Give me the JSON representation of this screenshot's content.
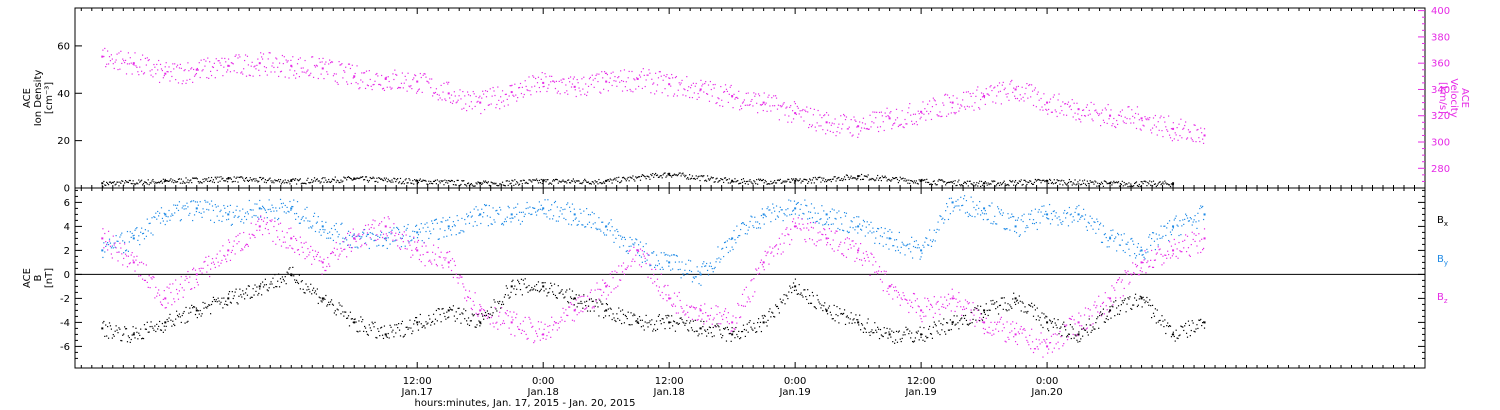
{
  "chart_data": [
    {
      "type": "scatter",
      "panel": "top",
      "ylabel_left": [
        "ACE",
        "Ion Density",
        "[cm⁻³]"
      ],
      "ylabel_right": [
        "ACE",
        "Velocity",
        "[km/s]"
      ],
      "ylim_left": [
        0,
        76
      ],
      "yticks_left": [
        0,
        20,
        40,
        60
      ],
      "ylim_right": [
        265,
        402
      ],
      "yticks_right": [
        280,
        300,
        320,
        340,
        360,
        380,
        400
      ],
      "grid": false,
      "x_unit": "hours since 0:00 Jan. 17, 2015",
      "series": [
        {
          "axis": "left",
          "color": "#000000",
          "x": [
            -18,
            -12,
            -6,
            0,
            6,
            12,
            18,
            24,
            30,
            36,
            42,
            48,
            54,
            60,
            66,
            72,
            78,
            84
          ],
          "y": [
            2,
            3,
            4,
            3,
            4,
            3,
            2,
            3,
            3,
            6,
            3,
            3,
            5,
            3,
            2,
            3,
            2,
            2
          ]
        },
        {
          "axis": "right",
          "color": "#e62ae6",
          "x": [
            -18,
            -15,
            -12,
            -9,
            -6,
            -3,
            0,
            3,
            6,
            9,
            12,
            15,
            18,
            21,
            24,
            27,
            30,
            33,
            36,
            39,
            42,
            45,
            48,
            51,
            54,
            57,
            60,
            63,
            66,
            69,
            72,
            75,
            78,
            81,
            84,
            87
          ],
          "y": [
            365,
            360,
            352,
            355,
            358,
            360,
            358,
            356,
            350,
            348,
            346,
            337,
            330,
            338,
            345,
            342,
            346,
            348,
            344,
            340,
            335,
            330,
            322,
            315,
            312,
            318,
            323,
            330,
            335,
            340,
            330,
            325,
            320,
            318,
            310,
            305
          ]
        }
      ]
    },
    {
      "type": "scatter",
      "panel": "bottom",
      "ylabel": [
        "ACE",
        "B",
        "[nT]"
      ],
      "ylim": [
        -7.8,
        7.2
      ],
      "yticks": [
        -6,
        -4,
        -2,
        0,
        2,
        4,
        6
      ],
      "zero_line": true,
      "grid": false,
      "x_unit": "hours since 0:00 Jan. 17, 2015",
      "series": [
        {
          "name": "Bx",
          "color": "#000000",
          "x": [
            -18,
            -15,
            -12,
            -9,
            -6,
            -3,
            0,
            3,
            6,
            9,
            12,
            15,
            18,
            21,
            24,
            27,
            30,
            33,
            36,
            39,
            42,
            45,
            48,
            51,
            54,
            57,
            60,
            63,
            66,
            69,
            72,
            75,
            78,
            81,
            84,
            87
          ],
          "y": [
            -4.5,
            -5,
            -4,
            -3,
            -2,
            -1,
            0,
            -2,
            -4,
            -5,
            -4,
            -3,
            -4,
            -1,
            -1,
            -2,
            -3,
            -4,
            -4,
            -4.5,
            -5,
            -4,
            -1,
            -3,
            -4,
            -5,
            -5,
            -4,
            -3,
            -2,
            -4,
            -5,
            -3,
            -2,
            -5,
            -4
          ]
        },
        {
          "name": "By",
          "color": "#1e8ae6",
          "x": [
            -18,
            -15,
            -12,
            -9,
            -6,
            -3,
            0,
            3,
            6,
            9,
            12,
            15,
            18,
            21,
            24,
            27,
            30,
            33,
            36,
            39,
            42,
            45,
            48,
            51,
            54,
            57,
            60,
            63,
            66,
            69,
            72,
            75,
            78,
            81,
            84,
            87
          ],
          "y": [
            2,
            3,
            5,
            5.5,
            5,
            5.5,
            5.5,
            4,
            3,
            3,
            3.5,
            4,
            5,
            5,
            5.5,
            5,
            4,
            2,
            1,
            0,
            3,
            5,
            5.5,
            5,
            4,
            3,
            2,
            6,
            5.5,
            4,
            5,
            5,
            3,
            2,
            4,
            5
          ]
        },
        {
          "name": "Bz",
          "color": "#e62ae6",
          "x": [
            -18,
            -15,
            -12,
            -9,
            -6,
            -3,
            0,
            3,
            6,
            9,
            12,
            15,
            18,
            21,
            24,
            27,
            30,
            33,
            36,
            39,
            42,
            45,
            48,
            51,
            54,
            57,
            60,
            63,
            66,
            69,
            72,
            75,
            78,
            81,
            84,
            87
          ],
          "y": [
            3,
            1,
            -2,
            0,
            2,
            4,
            3,
            1,
            3,
            4,
            2,
            1,
            -3,
            -4,
            -5,
            -3,
            -1,
            2,
            -2,
            -3,
            -4,
            1,
            4,
            3,
            2,
            -1,
            -3,
            -2,
            -4,
            -5,
            -6,
            -4,
            -2,
            1,
            2,
            3
          ]
        }
      ]
    }
  ],
  "x_axis": {
    "xlim_hours": [
      -20.6,
      108
    ],
    "ticks": [
      {
        "hour": 12,
        "time": "12:00",
        "day": "Jan.17"
      },
      {
        "hour": 24,
        "time": "0:00",
        "day": "Jan.18"
      },
      {
        "hour": 36,
        "time": "12:00",
        "day": "Jan.18"
      },
      {
        "hour": 48,
        "time": "0:00",
        "day": "Jan.19"
      },
      {
        "hour": 60,
        "time": "12:00",
        "day": "Jan.19"
      },
      {
        "hour": 72,
        "time": "0:00",
        "day": "Jan.20"
      }
    ],
    "minor_every_hours": 1,
    "label": "hours:minutes, Jan. 17, 2015 - Jan. 20, 2015"
  },
  "legend": {
    "placement": "right",
    "entries": [
      {
        "main": "B",
        "sub": "x",
        "color": "#000000"
      },
      {
        "main": "B",
        "sub": "y",
        "color": "#1e8ae6"
      },
      {
        "main": "B",
        "sub": "z",
        "color": "#e62ae6"
      }
    ]
  }
}
